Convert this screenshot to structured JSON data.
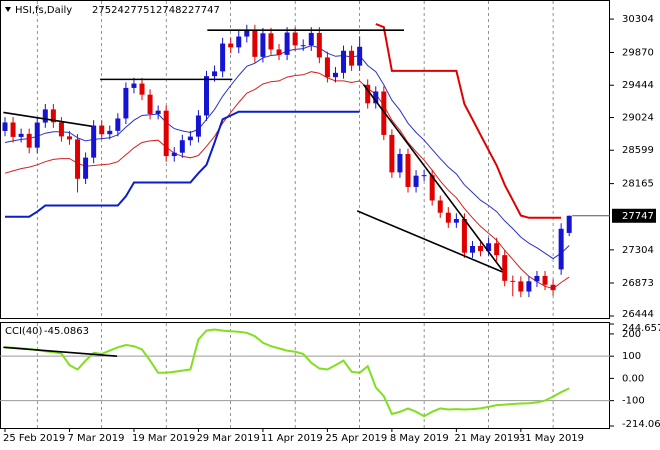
{
  "chart_data": [
    {
      "type": "candlestick",
      "title": "HSI,fs,Daily",
      "categories": [
        "25 Feb 2019",
        null,
        null,
        null,
        null,
        null,
        null,
        null,
        "7 Mar 2019",
        null,
        null,
        null,
        null,
        null,
        null,
        null,
        "19 Mar 2019",
        null,
        null,
        null,
        null,
        null,
        null,
        null,
        "29 Mar 2019",
        null,
        null,
        null,
        null,
        null,
        null,
        null,
        "11 Apr 2019",
        null,
        null,
        null,
        null,
        null,
        null,
        null,
        "25 Apr 2019",
        null,
        null,
        null,
        null,
        null,
        null,
        null,
        "8 May 2019",
        null,
        null,
        null,
        null,
        null,
        null,
        null,
        "21 May 2019",
        null,
        null,
        null,
        null,
        null,
        null,
        null,
        "31 May 2019",
        null,
        null,
        null,
        null,
        null,
        null
      ],
      "open": [
        28850,
        28960,
        28772,
        28812,
        28633,
        28959,
        29130,
        28962,
        28779,
        28740,
        28228,
        28503,
        28920,
        28807,
        28851,
        29012,
        29409,
        29466,
        29321,
        29071,
        29113,
        28523,
        28567,
        28729,
        28776,
        29051,
        29562,
        29624,
        29986,
        29936,
        30077,
        30157,
        29813,
        30119,
        29909,
        29839,
        30129,
        29963,
        29964,
        30124,
        29805,
        29549,
        29605,
        29892,
        29699,
        29450,
        29209,
        29363,
        28798,
        28311,
        28550,
        28122,
        28268,
        28275,
        27946,
        27787,
        27657,
        27705,
        27267,
        27354,
        27288,
        27390,
        27235,
        26901,
        26894,
        26762,
        26895,
        26965,
        26850,
        27050,
        27524
      ],
      "high": [
        29030,
        29030,
        28880,
        28880,
        29030,
        29200,
        29200,
        29030,
        28850,
        28810,
        28570,
        28990,
        28990,
        28920,
        29080,
        29480,
        29540,
        29540,
        29390,
        29180,
        29180,
        28640,
        28800,
        28850,
        29120,
        29630,
        29700,
        30060,
        30060,
        30150,
        30230,
        30230,
        30190,
        30190,
        29980,
        30200,
        30200,
        30040,
        30200,
        30200,
        29880,
        29680,
        29960,
        29960,
        30080,
        29520,
        29430,
        29430,
        28870,
        28620,
        28620,
        28340,
        28340,
        28340,
        28010,
        27860,
        27780,
        27780,
        27420,
        27420,
        27460,
        27460,
        27300,
        26970,
        26960,
        26960,
        27030,
        27030,
        26920,
        27650,
        27751
      ],
      "low": [
        28780,
        28700,
        28700,
        28560,
        28560,
        28890,
        28890,
        28710,
        28670,
        28050,
        28160,
        28430,
        28740,
        28740,
        28780,
        28940,
        29340,
        29250,
        29000,
        29000,
        28450,
        28450,
        28500,
        28660,
        28700,
        28980,
        29490,
        29550,
        29860,
        29860,
        30000,
        29740,
        29740,
        29840,
        29770,
        29770,
        29890,
        29890,
        29890,
        29730,
        29480,
        29480,
        29530,
        29630,
        29630,
        29140,
        29140,
        28730,
        28240,
        28240,
        28050,
        28050,
        28200,
        27880,
        27720,
        27590,
        27590,
        27200,
        27200,
        27220,
        27220,
        27160,
        26830,
        26700,
        26690,
        26690,
        26820,
        26780,
        26710,
        26980,
        27482
      ],
      "close": [
        28960,
        28772,
        28812,
        28633,
        28959,
        29130,
        28962,
        28779,
        28740,
        28228,
        28503,
        28920,
        28807,
        28851,
        29012,
        29409,
        29466,
        29321,
        29071,
        29113,
        28523,
        28567,
        28729,
        28776,
        29051,
        29562,
        29624,
        29986,
        29936,
        30077,
        30157,
        29813,
        30119,
        29909,
        29839,
        30129,
        29963,
        29964,
        30124,
        29805,
        29549,
        29605,
        29892,
        29699,
        29944,
        29209,
        29363,
        28798,
        28311,
        28550,
        28122,
        28268,
        28275,
        27946,
        27787,
        27657,
        27705,
        27267,
        27354,
        27288,
        27390,
        27235,
        26901,
        26894,
        26762,
        26895,
        26965,
        26850,
        26780,
        27578,
        27747
      ],
      "up_color": "#1414d2",
      "down_color": "#e00000",
      "lines": [
        {
          "color": "#2a32c8",
          "width": 1,
          "values": [
            28700,
            28720,
            28740,
            28750,
            28780,
            28820,
            28840,
            28840,
            28830,
            28760,
            28720,
            28740,
            28750,
            28760,
            28800,
            28900,
            28990,
            29050,
            29060,
            29070,
            28960,
            28880,
            28850,
            28830,
            28870,
            29000,
            29130,
            29300,
            29440,
            29570,
            29690,
            29730,
            29800,
            29830,
            29840,
            29890,
            29910,
            29920,
            29960,
            29930,
            29860,
            29820,
            29830,
            29810,
            29830,
            29700,
            29620,
            29450,
            29250,
            29120,
            28950,
            28830,
            28730,
            28610,
            28490,
            28380,
            28290,
            28150,
            28050,
            27950,
            27880,
            27800,
            27680,
            27580,
            27470,
            27390,
            27330,
            27260,
            27190,
            27260,
            27360
          ]
        },
        {
          "color": "#d42020",
          "width": 1,
          "values": [
            28300,
            28330,
            28360,
            28380,
            28410,
            28450,
            28480,
            28490,
            28490,
            28430,
            28390,
            28400,
            28410,
            28420,
            28450,
            28540,
            28630,
            28700,
            28720,
            28730,
            28640,
            28560,
            28520,
            28500,
            28530,
            28650,
            28780,
            28950,
            29090,
            29220,
            29340,
            29390,
            29460,
            29490,
            29500,
            29550,
            29570,
            29580,
            29620,
            29600,
            29540,
            29500,
            29500,
            29480,
            29500,
            29400,
            29330,
            29180,
            28990,
            28860,
            28700,
            28580,
            28470,
            28340,
            28200,
            28080,
            27980,
            27840,
            27720,
            27610,
            27520,
            27430,
            27300,
            27180,
            27060,
            26960,
            26890,
            26830,
            26800,
            26880,
            26950
          ]
        },
        {
          "color": "#0a1ec8",
          "width": 2,
          "values": [
            27735,
            27735,
            27735,
            27735,
            27800,
            27880,
            27880,
            27880,
            27880,
            27880,
            27880,
            27880,
            27880,
            27880,
            27880,
            28000,
            28180,
            28180,
            28180,
            28180,
            28180,
            28180,
            28180,
            28180,
            28300,
            28410,
            28700,
            29000,
            29050,
            29100,
            29100,
            29100,
            29100,
            29100,
            29100,
            29100,
            29100,
            29100,
            29100,
            29100,
            29100,
            29100,
            29100,
            29100,
            29100,
            null,
            null,
            null,
            null,
            null,
            null,
            null,
            null,
            null,
            null,
            null,
            null,
            null,
            null,
            null,
            null,
            null,
            null,
            null,
            null,
            null,
            null,
            null,
            null,
            null,
            null
          ]
        },
        {
          "color": "#e00000",
          "width": 2,
          "values": [
            null,
            null,
            null,
            null,
            null,
            null,
            null,
            null,
            null,
            null,
            null,
            null,
            null,
            null,
            null,
            null,
            null,
            null,
            null,
            null,
            null,
            null,
            null,
            null,
            null,
            null,
            null,
            null,
            null,
            null,
            null,
            null,
            null,
            null,
            null,
            null,
            null,
            null,
            null,
            null,
            null,
            null,
            null,
            null,
            null,
            null,
            30240,
            30200,
            29630,
            29630,
            29630,
            29630,
            29630,
            29630,
            29630,
            29630,
            29630,
            29200,
            29000,
            28800,
            28600,
            28400,
            28150,
            27950,
            27750,
            27720,
            27720,
            27720,
            27720,
            27720,
            null
          ]
        }
      ],
      "trendlines": [
        {
          "x": [
            -0.2,
            10.8
          ],
          "y": [
            29090,
            28910
          ]
        },
        {
          "x": [
            11.8,
            28.2
          ],
          "y": [
            29520,
            29520
          ]
        },
        {
          "x": [
            25.1,
            49.5
          ],
          "y": [
            30160,
            30160
          ]
        },
        {
          "x": [
            44.5,
            61.7
          ],
          "y": [
            29450,
            27040
          ]
        },
        {
          "x": [
            43.7,
            61.7
          ],
          "y": [
            27810,
            27018
          ]
        }
      ],
      "ylim": [
        26418,
        30526
      ],
      "yticks": [
        30304,
        29870,
        29444,
        29024,
        28599,
        28165,
        27304,
        26873,
        26444
      ]
    },
    {
      "type": "line",
      "title": "CCI(40)",
      "color": "#80e020",
      "values": [
        140,
        138,
        135,
        132,
        128,
        122,
        118,
        112,
        60,
        40,
        80,
        115,
        110,
        125,
        140,
        150,
        145,
        130,
        80,
        25,
        25,
        30,
        35,
        40,
        175,
        215,
        220,
        215,
        212,
        210,
        205,
        190,
        160,
        145,
        135,
        125,
        120,
        110,
        70,
        45,
        40,
        60,
        80,
        30,
        25,
        55,
        -40,
        -80,
        -160,
        -150,
        -135,
        -150,
        -170,
        -150,
        -135,
        -140,
        -138,
        -140,
        -138,
        -135,
        -128,
        -120,
        -118,
        -115,
        -113,
        -112,
        -108,
        -100,
        -82,
        -62,
        -45.0863
      ],
      "levels": [
        100,
        -100
      ],
      "trendlines": [
        {
          "x": [
            -0.2,
            13.9
          ],
          "y": [
            140,
            100
          ]
        }
      ],
      "ylim": [
        -214.0621,
        244.6572
      ],
      "yticks": [
        244.6572,
        200,
        100,
        {
          "value": 0,
          "label": "0.00"
        },
        -100,
        -214.0621
      ]
    }
  ]
}
